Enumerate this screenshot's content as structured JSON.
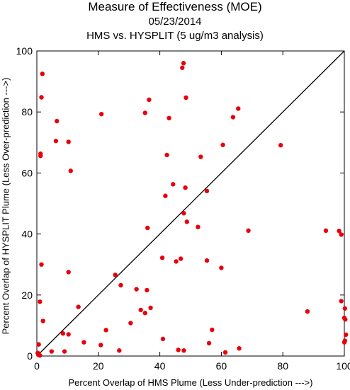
{
  "chart_data": {
    "type": "scatter",
    "title": "Measure of Effectiveness (MOE)",
    "subtitle": "05/23/2014",
    "subtitle2": "HMS vs. HYSPLIT  (5 ug/m3 analysis)",
    "xlabel": "Percent Overlap of HMS Plume (Less Under-prediction --->)",
    "ylabel": "Percent Overlap of HYSPLIT Plume (Less Over-prediction --->)",
    "xlim": [
      0,
      100
    ],
    "ylim": [
      0,
      100
    ],
    "xticks": [
      0,
      20,
      40,
      60,
      80,
      100
    ],
    "yticks": [
      0,
      20,
      40,
      60,
      80,
      100
    ],
    "reference_line": "y = x",
    "grid": false,
    "point_color": "#e8000b",
    "line_color": "#000000",
    "points": [
      [
        1.8,
        92.5
      ],
      [
        1.5,
        84.8
      ],
      [
        6.5,
        77.0
      ],
      [
        6.2,
        70.5
      ],
      [
        10.3,
        70.2
      ],
      [
        1.2,
        66.3
      ],
      [
        1.2,
        65.6
      ],
      [
        11.0,
        60.7
      ],
      [
        21.0,
        79.3
      ],
      [
        35.2,
        79.7
      ],
      [
        36.5,
        84.0
      ],
      [
        43.0,
        78.0
      ],
      [
        47.3,
        94.5
      ],
      [
        47.7,
        96.0
      ],
      [
        48.5,
        84.7
      ],
      [
        42.3,
        65.9
      ],
      [
        44.3,
        56.3
      ],
      [
        41.8,
        52.5
      ],
      [
        48.3,
        55.2
      ],
      [
        53.3,
        65.3
      ],
      [
        60.5,
        69.2
      ],
      [
        63.8,
        78.3
      ],
      [
        65.5,
        81.1
      ],
      [
        79.3,
        69.1
      ],
      [
        55.3,
        54.1
      ],
      [
        47.8,
        46.8
      ],
      [
        48.8,
        44.0
      ],
      [
        52.4,
        42.3
      ],
      [
        36.0,
        42.0
      ],
      [
        68.8,
        41.1
      ],
      [
        94.0,
        41.1
      ],
      [
        98.3,
        41.0
      ],
      [
        99.0,
        39.8
      ],
      [
        1.5,
        30.0
      ],
      [
        10.3,
        27.5
      ],
      [
        25.5,
        26.6
      ],
      [
        27.3,
        23.2
      ],
      [
        35.8,
        21.6
      ],
      [
        32.4,
        21.9
      ],
      [
        40.8,
        32.2
      ],
      [
        45.3,
        31.0
      ],
      [
        46.8,
        31.9
      ],
      [
        55.3,
        31.3
      ],
      [
        60.0,
        28.9
      ],
      [
        1.0,
        17.8
      ],
      [
        2.0,
        11.5
      ],
      [
        13.5,
        16.1
      ],
      [
        33.8,
        15.1
      ],
      [
        35.2,
        14.1
      ],
      [
        37.0,
        15.8
      ],
      [
        30.5,
        10.8
      ],
      [
        88.0,
        14.6
      ],
      [
        99.0,
        18.0
      ],
      [
        100.2,
        15.6
      ],
      [
        100.0,
        12.5
      ],
      [
        100.3,
        12.0
      ],
      [
        100.5,
        7.0
      ],
      [
        100.2,
        5.0
      ],
      [
        100.0,
        4.5
      ],
      [
        22.5,
        8.5
      ],
      [
        57.0,
        8.6
      ],
      [
        41.0,
        5.6
      ],
      [
        8.5,
        7.4
      ],
      [
        10.3,
        7.1
      ],
      [
        15.3,
        4.5
      ],
      [
        20.8,
        3.6
      ],
      [
        56.0,
        4.2
      ],
      [
        0.6,
        3.8
      ],
      [
        4.8,
        1.5
      ],
      [
        9.0,
        1.5
      ],
      [
        26.8,
        1.8
      ],
      [
        46.0,
        2.0
      ],
      [
        47.8,
        1.8
      ],
      [
        61.3,
        1.2
      ],
      [
        65.8,
        2.5
      ],
      [
        0.3,
        1.0
      ],
      [
        0.5,
        0.4
      ],
      [
        1.0,
        0.2
      ]
    ]
  }
}
